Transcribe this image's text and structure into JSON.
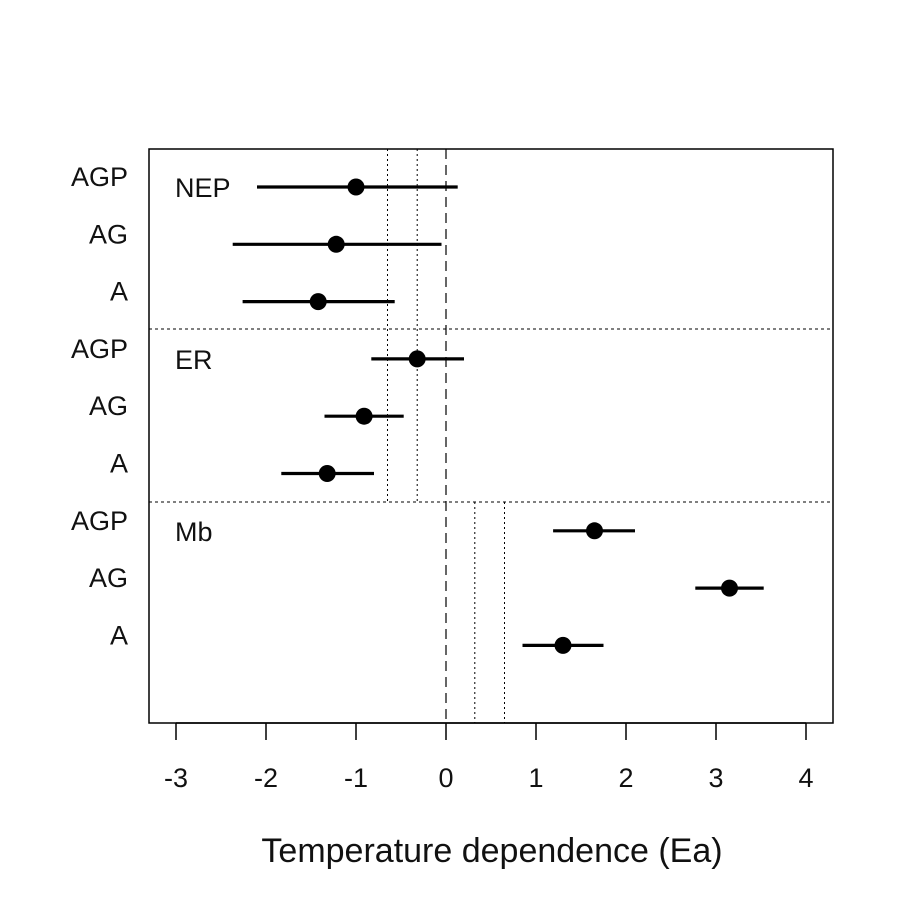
{
  "chart_data": {
    "type": "forest",
    "title": "",
    "xlabel": "Temperature dependence (Ea)",
    "ylabel": "",
    "xlim": [
      -3.3,
      4.3
    ],
    "x_ticks": [
      -3,
      -2,
      -1,
      0,
      1,
      2,
      3,
      4
    ],
    "groups": [
      {
        "name": "NEP",
        "reference_lines": [
          -0.65,
          -0.32
        ],
        "points": [
          {
            "label": "AGP",
            "estimate": -1.0,
            "lower": -2.1,
            "upper": 0.13
          },
          {
            "label": "AG",
            "estimate": -1.22,
            "lower": -2.37,
            "upper": -0.05
          },
          {
            "label": "A",
            "estimate": -1.42,
            "lower": -2.26,
            "upper": -0.57
          }
        ]
      },
      {
        "name": "ER",
        "reference_lines": [
          -0.65,
          -0.32
        ],
        "points": [
          {
            "label": "AGP",
            "estimate": -0.32,
            "lower": -0.83,
            "upper": 0.2
          },
          {
            "label": "AG",
            "estimate": -0.91,
            "lower": -1.35,
            "upper": -0.47
          },
          {
            "label": "A",
            "estimate": -1.32,
            "lower": -1.83,
            "upper": -0.8
          }
        ]
      },
      {
        "name": "Mb",
        "reference_lines": [
          0.32,
          0.65
        ],
        "points": [
          {
            "label": "AGP",
            "estimate": 1.65,
            "lower": 1.19,
            "upper": 2.1
          },
          {
            "label": "AG",
            "estimate": 3.15,
            "lower": 2.77,
            "upper": 3.53
          },
          {
            "label": "A",
            "estimate": 1.3,
            "lower": 0.85,
            "upper": 1.75
          }
        ]
      }
    ],
    "zero_line": 0,
    "grid": false,
    "legend": "none"
  }
}
